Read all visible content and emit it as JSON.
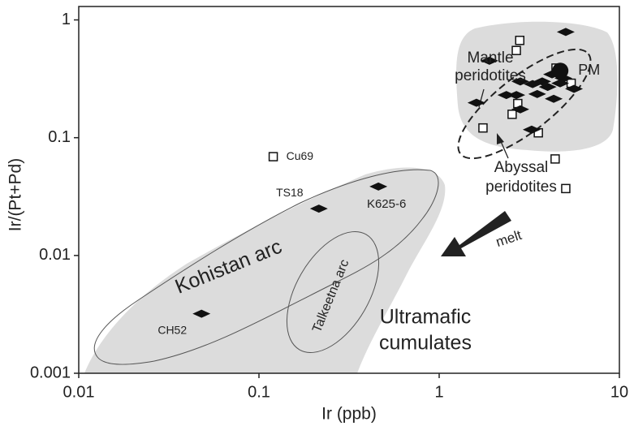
{
  "chart_data": {
    "type": "scatter",
    "x_label": "Ir (ppb)",
    "y_label": "Ir/(Pt+Pd)",
    "xscale": "log",
    "yscale": "log",
    "xlim": [
      0.01,
      10
    ],
    "ylim": [
      0.001,
      1.3
    ],
    "xticks": [
      0.01,
      0.1,
      1,
      10
    ],
    "yticks": [
      0.001,
      0.01,
      0.1,
      1
    ],
    "series": [
      {
        "marker": "square",
        "color": "#ffffff",
        "x": [
          2.8,
          2.68,
          4.45,
          5.4,
          2.73,
          2.54,
          1.75,
          3.55,
          4.4,
          5.04
        ],
        "values": [
          0.67,
          0.55,
          0.39,
          0.29,
          0.195,
          0.158,
          0.121,
          0.11,
          0.066,
          0.037
        ]
      },
      {
        "marker": "diamond",
        "color": "#111111",
        "x": [
          5.04,
          1.9,
          2.82,
          3.3,
          3.73,
          4.23,
          4.89,
          4.69,
          5.6,
          2.36,
          2.68,
          3.5,
          1.61,
          2.82,
          3.26,
          4.32,
          4.0
        ],
        "values": [
          0.79,
          0.45,
          0.3,
          0.285,
          0.3,
          0.345,
          0.32,
          0.29,
          0.26,
          0.23,
          0.23,
          0.235,
          0.198,
          0.174,
          0.117,
          0.214,
          0.27
        ]
      },
      {
        "marker": "square",
        "color": "#ffffff",
        "x": [
          0.12
        ],
        "values": [
          0.069
        ],
        "labels": [
          "Cu69"
        ]
      },
      {
        "marker": "diamond",
        "color": "#111111",
        "x": [
          0.215,
          0.46,
          0.048
        ],
        "values": [
          0.025,
          0.0385,
          0.0032
        ],
        "labels": [
          "TS18",
          "K625-6",
          "CH52"
        ]
      },
      {
        "marker": "circle",
        "color": "#111111",
        "x": [
          4.7
        ],
        "values": [
          0.37
        ],
        "labels": [
          "PM"
        ]
      }
    ],
    "annotations": [
      {
        "text": [
          "Mantle",
          "peridotites"
        ]
      },
      {
        "text": [
          "Abyssal",
          "peridotites"
        ]
      },
      {
        "text": [
          "Kohistan arc"
        ]
      },
      {
        "text": [
          "Talkeetna arc"
        ]
      },
      {
        "text": [
          "Ultramafic",
          "cumulates"
        ]
      },
      {
        "text": [
          "melt"
        ]
      }
    ]
  }
}
